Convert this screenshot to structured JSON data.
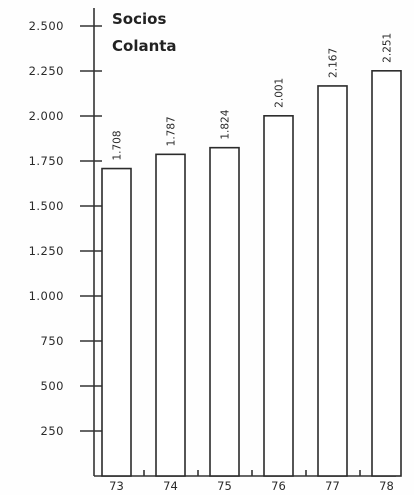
{
  "chart_data": {
    "type": "bar",
    "title": "Socios\nColanta",
    "title_lines": [
      "Socios",
      "Colanta"
    ],
    "categories": [
      "73",
      "74",
      "75",
      "76",
      "77",
      "78"
    ],
    "values": [
      1708,
      1787,
      1824,
      2001,
      2167,
      2251
    ],
    "value_labels": [
      "1.708",
      "1.787",
      "1.824",
      "2.001",
      "2.167",
      "2.251"
    ],
    "y_ticks": [
      {
        "value": 2500,
        "label": "2.500"
      },
      {
        "value": 2250,
        "label": "2.250"
      },
      {
        "value": 2000,
        "label": "2.000"
      },
      {
        "value": 1750,
        "label": "1.750"
      },
      {
        "value": 1500,
        "label": "1.500"
      },
      {
        "value": 1250,
        "label": "1.250"
      },
      {
        "value": 1000,
        "label": "1.000"
      },
      {
        "value": 750,
        "label": "750"
      },
      {
        "value": 500,
        "label": "500"
      },
      {
        "value": 250,
        "label": "250"
      },
      {
        "value": 0,
        "label": ""
      }
    ],
    "ylim": [
      0,
      2500
    ],
    "grid": false,
    "xlabel": "",
    "ylabel": "",
    "colors": {
      "bar_fill": "#ffffff",
      "bar_stroke": "#2b2b2b",
      "axis": "#333333",
      "text": "#2a2a2a"
    }
  }
}
